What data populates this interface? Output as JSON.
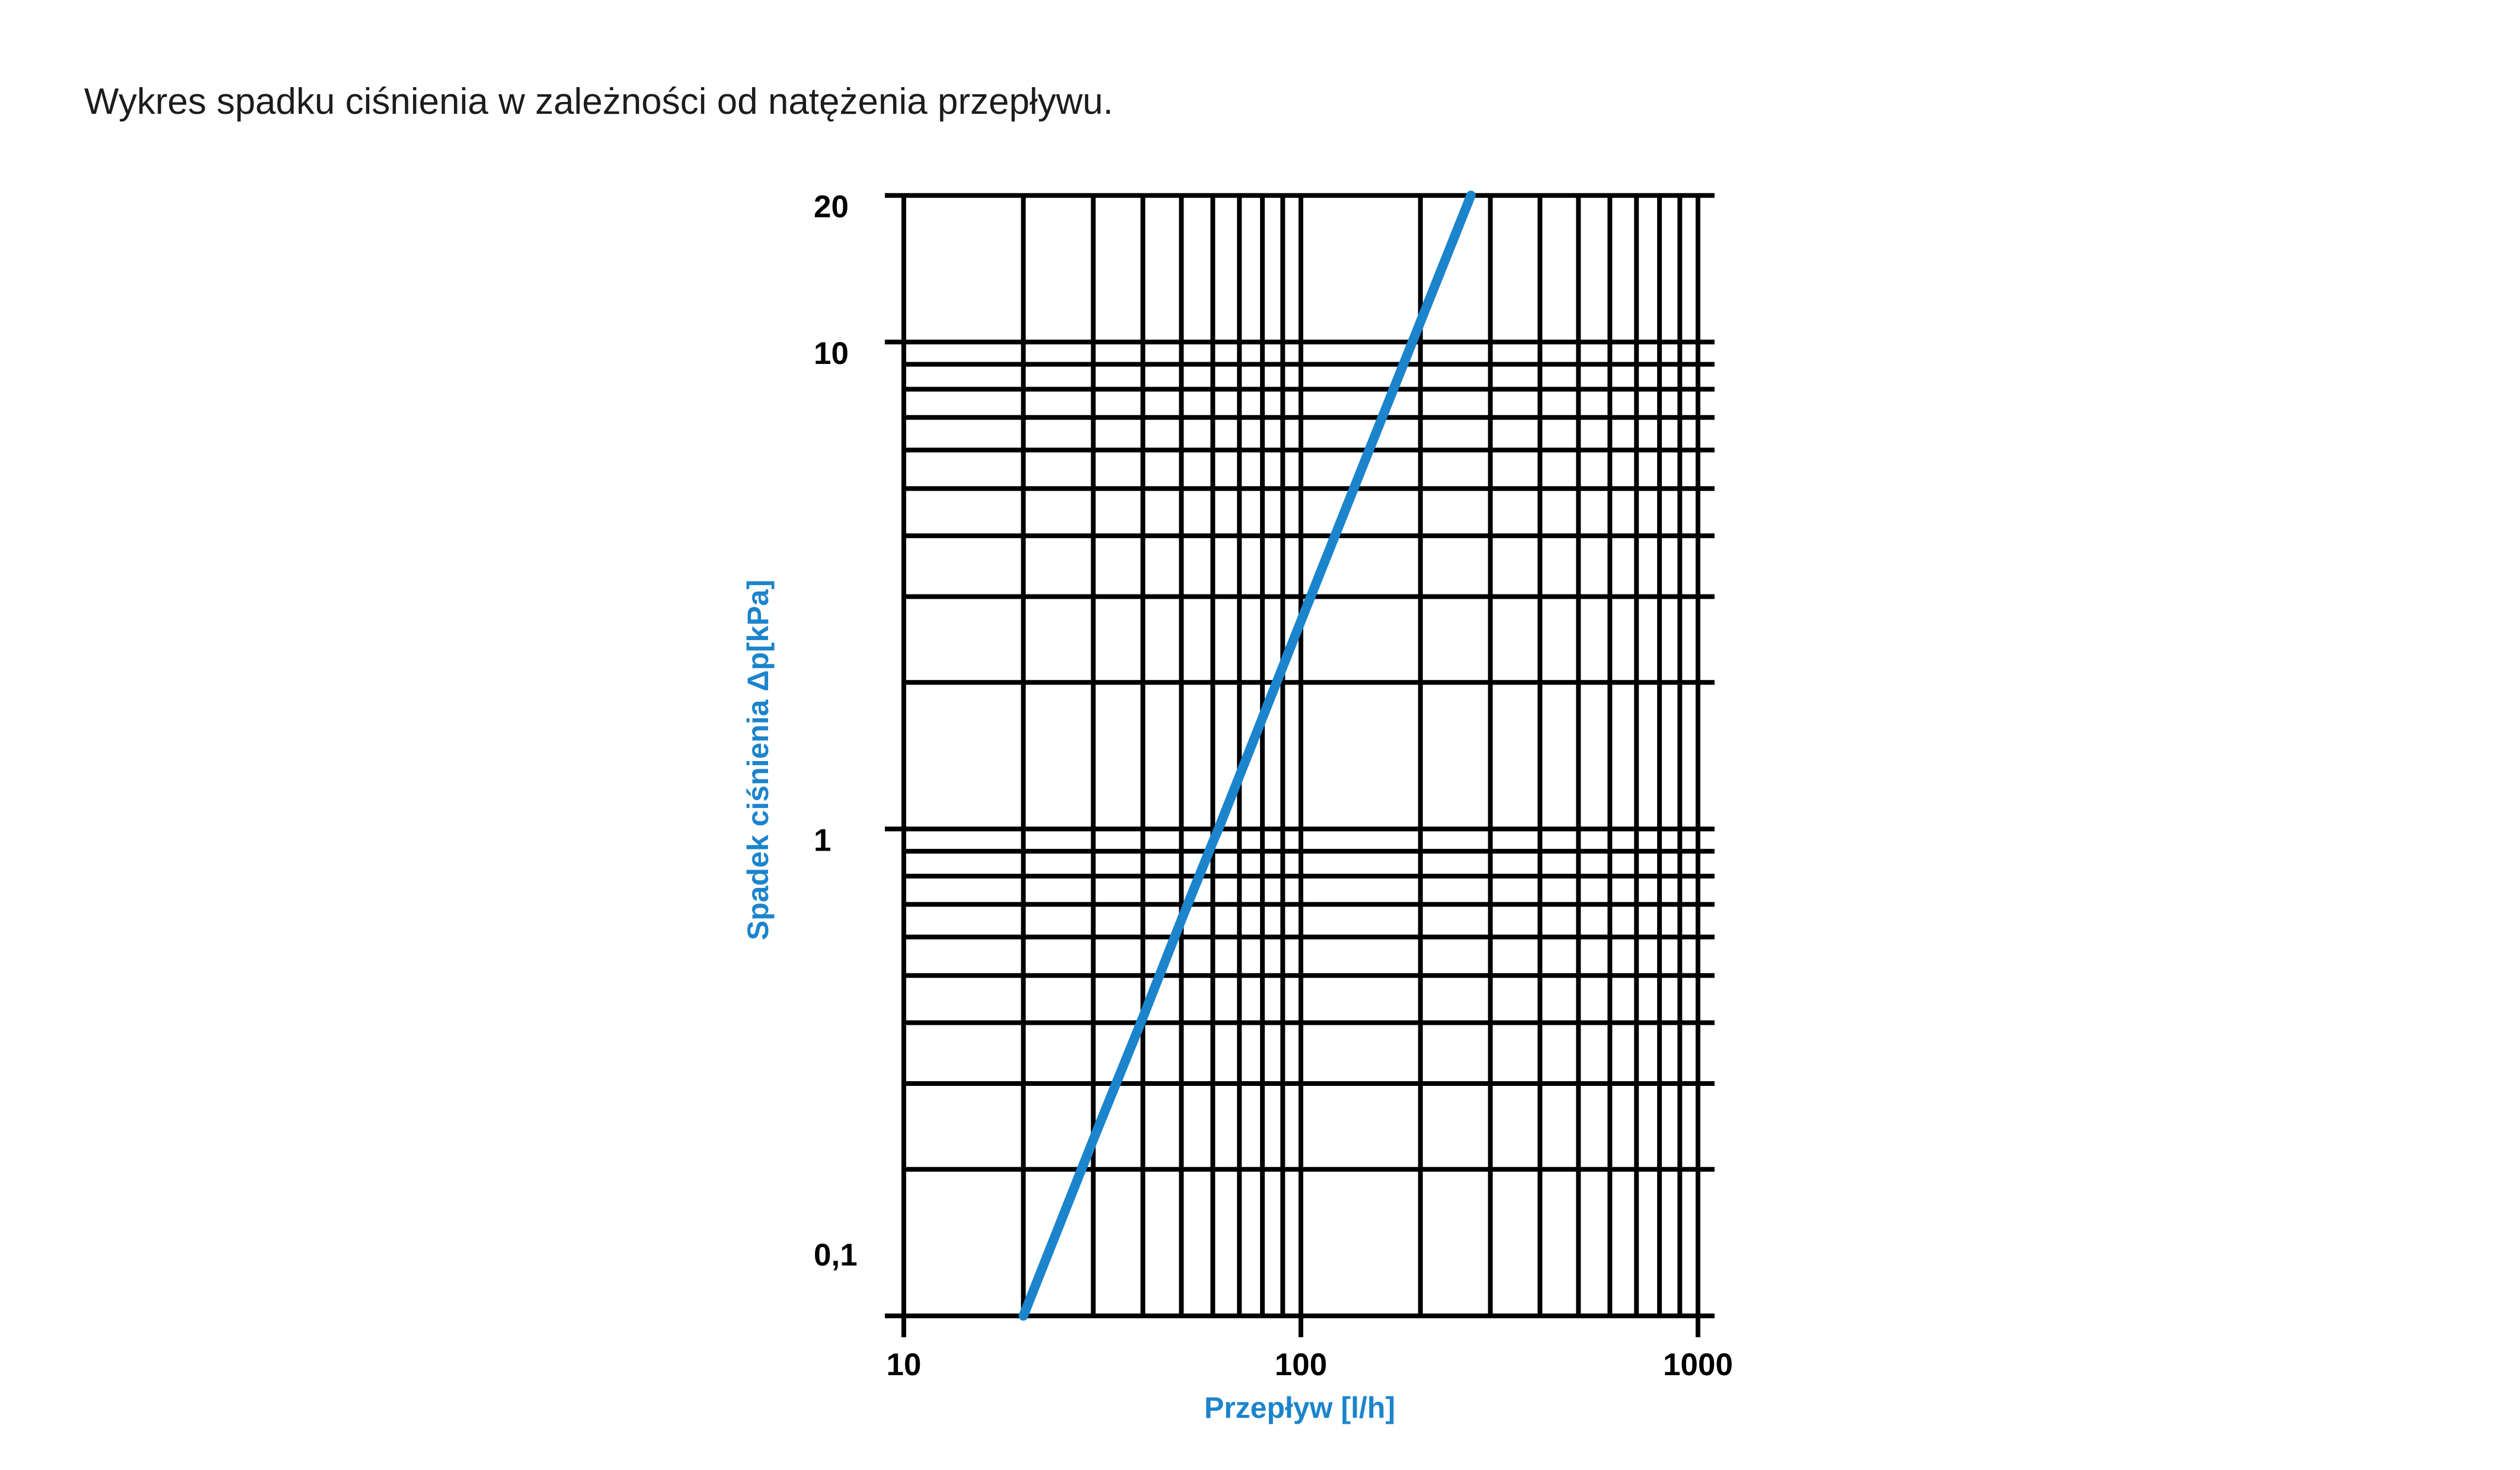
{
  "page": {
    "background": "#ffffff"
  },
  "colors": {
    "accent_blue": "#1B84CC",
    "grid_black": "#000000",
    "title_text": "#1c1c1c"
  },
  "chart_data": {
    "type": "line",
    "title": "Wykres spadku ciśnienia w zależności od natężenia przepływu.",
    "xlabel": "Przepływ [l/h]",
    "ylabel": "Spadek ciśnienia Δp[kPa]",
    "x_scale": "log",
    "y_scale": "log",
    "x_range": [
      10,
      1100
    ],
    "y_range": [
      0.1,
      20
    ],
    "grid": true,
    "legend": false,
    "x_gridlines": [
      10,
      20,
      30,
      40,
      50,
      60,
      70,
      80,
      90,
      100,
      200,
      300,
      400,
      500,
      600,
      700,
      800,
      900,
      1000
    ],
    "y_gridlines": [
      20,
      10,
      9,
      8,
      7,
      6,
      5,
      4,
      3,
      2,
      1,
      0.9,
      0.8,
      0.7,
      0.6,
      0.5,
      0.4,
      0.3,
      0.2,
      0.1
    ],
    "x_major_ticks": [
      {
        "value": 10,
        "label": "10"
      },
      {
        "value": 100,
        "label": "100"
      },
      {
        "value": 1000,
        "label": "1000"
      }
    ],
    "y_major_ticks": [
      {
        "value": 20,
        "label": "20"
      },
      {
        "value": 10,
        "label": "10"
      },
      {
        "value": 1,
        "label": "1"
      },
      {
        "value": 0.1,
        "label": "0,1"
      }
    ],
    "series": [
      {
        "name": "spadek-cisnienia",
        "color": "#1B84CC",
        "points": [
          [
            20,
            0.1
          ],
          [
            30,
            0.23
          ],
          [
            40,
            0.41
          ],
          [
            50,
            0.65
          ],
          [
            60,
            0.94
          ],
          [
            62,
            1.0
          ],
          [
            80,
            1.69
          ],
          [
            100,
            2.67
          ],
          [
            150,
            6.12
          ],
          [
            200,
            11.0
          ],
          [
            268,
            20.0
          ]
        ]
      }
    ]
  }
}
